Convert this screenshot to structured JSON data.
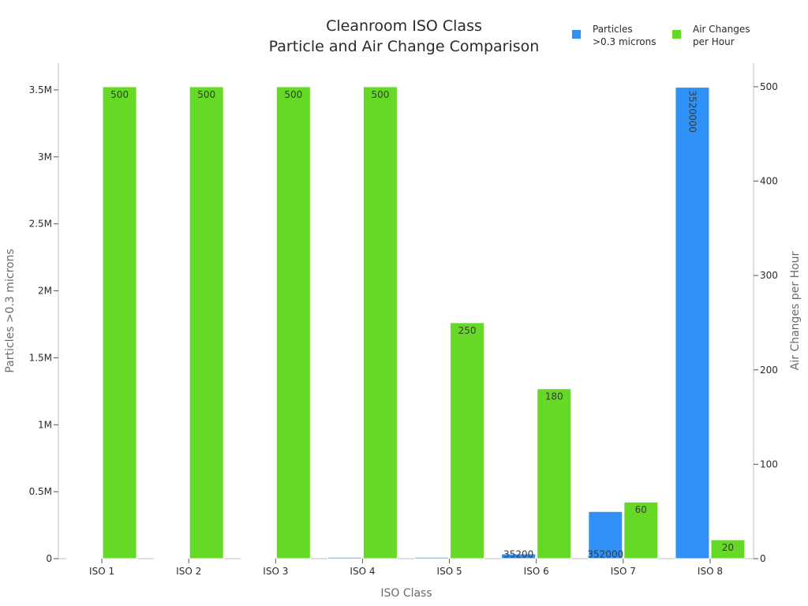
{
  "chart_data": {
    "type": "bar",
    "title": [
      "Cleanroom ISO Class",
      "Particle and Air Change Comparison"
    ],
    "xlabel": "ISO Class",
    "categories": [
      "ISO 1",
      "ISO 2",
      "ISO 3",
      "ISO 4",
      "ISO 5",
      "ISO 6",
      "ISO 7",
      "ISO 8"
    ],
    "series": [
      {
        "name": "Particles >0.3 microns",
        "legend_lines": [
          "Particles",
          ">0.3 microns"
        ],
        "axis": "left",
        "color": "#2f91f5",
        "values": [
          10,
          102,
          1020,
          10200,
          10200,
          35200,
          352000,
          3520000
        ],
        "data_labels": [
          "",
          "",
          "",
          "",
          "",
          "35200",
          "352000",
          "3520000"
        ]
      },
      {
        "name": "Air Changes per Hour",
        "legend_lines": [
          "Air Changes",
          "per Hour"
        ],
        "axis": "right",
        "color": "#66d927",
        "values": [
          500,
          500,
          500,
          500,
          250,
          180,
          60,
          20
        ],
        "data_labels": [
          "500",
          "500",
          "500",
          "500",
          "250",
          "180",
          "60",
          "20"
        ]
      }
    ],
    "y_left": {
      "label": "Particles >0.3 microns",
      "range": [
        0,
        3700000
      ],
      "ticks": [
        0,
        500000,
        1000000,
        1500000,
        2000000,
        2500000,
        3000000,
        3500000
      ],
      "tick_labels": [
        "0",
        "0.5M",
        "1M",
        "1.5M",
        "2M",
        "2.5M",
        "3M",
        "3.5M"
      ]
    },
    "y_right": {
      "label": "Air Changes per Hour",
      "range": [
        0,
        525
      ],
      "ticks": [
        0,
        100,
        200,
        300,
        400,
        500
      ],
      "tick_labels": [
        "0",
        "100",
        "200",
        "300",
        "400",
        "500"
      ]
    },
    "grid": false,
    "legend_position": "top-right"
  }
}
